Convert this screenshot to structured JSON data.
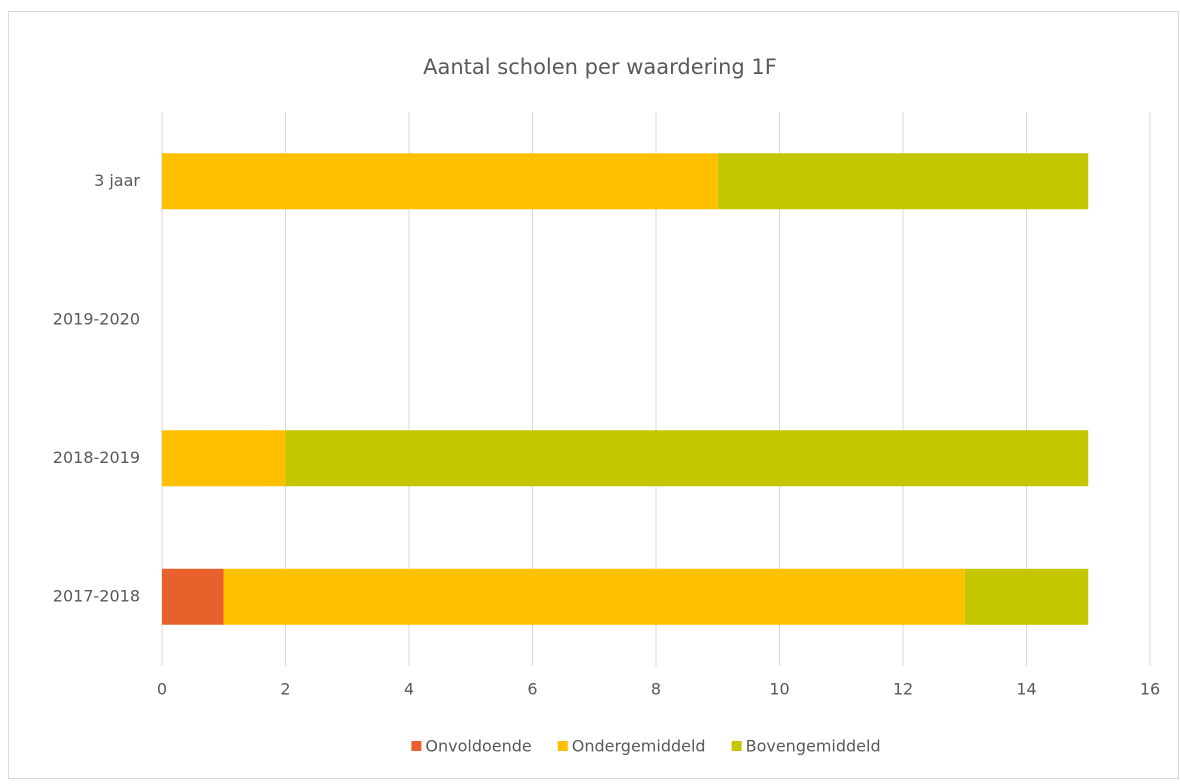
{
  "chart_data": {
    "type": "bar",
    "orientation": "horizontal",
    "stacked": true,
    "title": "Aantal scholen per waardering 1F",
    "categories": [
      "2017-2018",
      "2018-2019",
      "2019-2020",
      "3 jaar"
    ],
    "series": [
      {
        "name": "Onvoldoende",
        "color": "#e8602c",
        "values": [
          1,
          0,
          0,
          0
        ]
      },
      {
        "name": "Ondergemiddeld",
        "color": "#ffc000",
        "values": [
          12,
          2,
          0,
          9
        ]
      },
      {
        "name": "Bovengemiddeld",
        "color": "#c4c700",
        "values": [
          2,
          13,
          0,
          6
        ]
      }
    ],
    "xlim": [
      0,
      16
    ],
    "xticks": [
      0,
      2,
      4,
      6,
      8,
      10,
      12,
      14,
      16
    ],
    "grid": true,
    "legend": "bottom"
  }
}
